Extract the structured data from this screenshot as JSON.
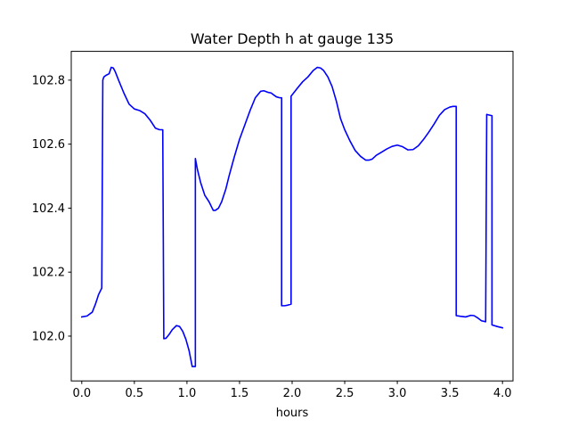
{
  "chart_data": {
    "type": "line",
    "title": "Water Depth h at gauge 135",
    "xlabel": "hours",
    "ylabel": "",
    "xlim": [
      -0.1,
      4.1
    ],
    "ylim": [
      101.86,
      102.89
    ],
    "xticks": [
      0.0,
      0.5,
      1.0,
      1.5,
      2.0,
      2.5,
      3.0,
      3.5,
      4.0
    ],
    "xtick_labels": [
      "0.0",
      "0.5",
      "1.0",
      "1.5",
      "2.0",
      "2.5",
      "3.0",
      "3.5",
      "4.0"
    ],
    "yticks": [
      102.0,
      102.2,
      102.4,
      102.6,
      102.8
    ],
    "ytick_labels": [
      "102.0",
      "102.2",
      "102.4",
      "102.6",
      "102.8"
    ],
    "grid": false,
    "series": [
      {
        "color": "#0000ff",
        "x": [
          0.0,
          0.05,
          0.1,
          0.13,
          0.16,
          0.19,
          0.2,
          0.21,
          0.23,
          0.26,
          0.28,
          0.3,
          0.32,
          0.35,
          0.4,
          0.45,
          0.5,
          0.55,
          0.6,
          0.65,
          0.7,
          0.74,
          0.77,
          0.78,
          0.78,
          0.8,
          0.83,
          0.86,
          0.9,
          0.93,
          0.96,
          0.99,
          1.02,
          1.05,
          1.08,
          1.08,
          1.1,
          1.13,
          1.17,
          1.21,
          1.25,
          1.27,
          1.3,
          1.33,
          1.37,
          1.4,
          1.45,
          1.5,
          1.55,
          1.6,
          1.65,
          1.7,
          1.73,
          1.77,
          1.8,
          1.82,
          1.85,
          1.88,
          1.9,
          1.9,
          1.93,
          1.96,
          1.99,
          1.99,
          2.05,
          2.1,
          2.15,
          2.2,
          2.24,
          2.27,
          2.3,
          2.34,
          2.38,
          2.42,
          2.46,
          2.5,
          2.55,
          2.6,
          2.65,
          2.7,
          2.73,
          2.76,
          2.8,
          2.85,
          2.9,
          2.95,
          3.0,
          3.05,
          3.1,
          3.15,
          3.2,
          3.25,
          3.3,
          3.35,
          3.4,
          3.45,
          3.5,
          3.53,
          3.56,
          3.56,
          3.6,
          3.65,
          3.7,
          3.73,
          3.76,
          3.8,
          3.84,
          3.85,
          3.86,
          3.9,
          3.9,
          3.95,
          4.0
        ],
        "y": [
          102.06,
          102.063,
          102.075,
          102.1,
          102.13,
          102.15,
          102.8,
          102.81,
          102.815,
          102.82,
          102.84,
          102.838,
          102.825,
          102.8,
          102.76,
          102.725,
          102.71,
          102.705,
          102.695,
          102.675,
          102.65,
          102.645,
          102.645,
          101.992,
          101.992,
          101.993,
          102.005,
          102.02,
          102.033,
          102.03,
          102.015,
          101.99,
          101.955,
          101.905,
          101.905,
          102.555,
          102.52,
          102.48,
          102.44,
          102.42,
          102.393,
          102.393,
          102.4,
          102.42,
          102.46,
          102.5,
          102.56,
          102.615,
          102.66,
          102.705,
          102.745,
          102.765,
          102.767,
          102.762,
          102.76,
          102.755,
          102.748,
          102.745,
          102.745,
          102.095,
          102.095,
          102.097,
          102.1,
          102.75,
          102.775,
          102.795,
          102.81,
          102.83,
          102.84,
          102.838,
          102.83,
          102.81,
          102.78,
          102.735,
          102.68,
          102.645,
          102.61,
          102.58,
          102.562,
          102.55,
          102.55,
          102.553,
          102.565,
          102.575,
          102.585,
          102.593,
          102.597,
          102.592,
          102.582,
          102.583,
          102.595,
          102.615,
          102.638,
          102.663,
          102.69,
          102.708,
          102.716,
          102.718,
          102.718,
          102.064,
          102.062,
          102.06,
          102.065,
          102.064,
          102.058,
          102.048,
          102.045,
          102.693,
          102.692,
          102.689,
          102.035,
          102.03,
          102.026
        ]
      }
    ]
  }
}
